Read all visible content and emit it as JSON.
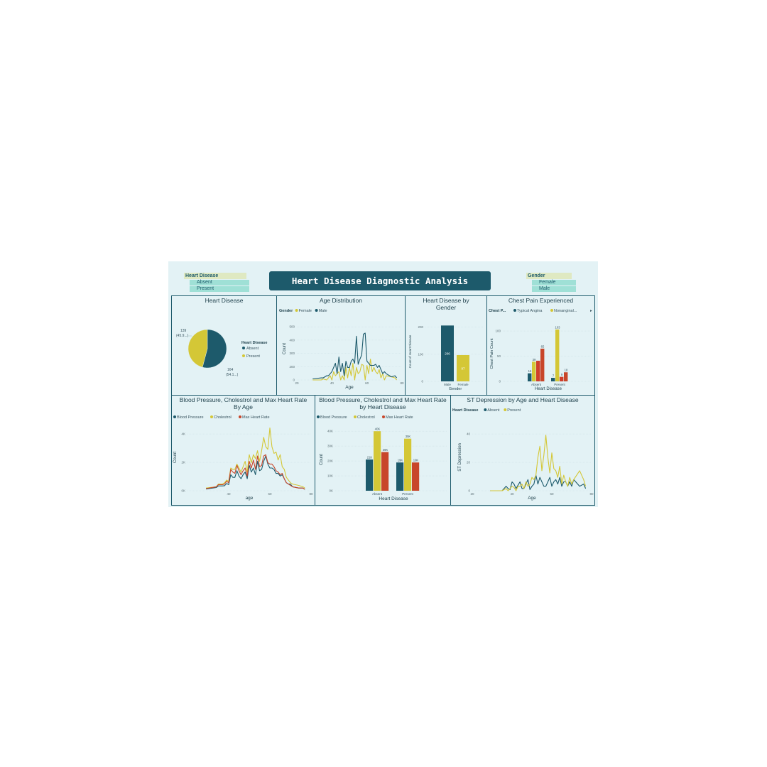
{
  "dashboard": {
    "title": "Heart Disease Diagnostic Analysis",
    "slicers": {
      "heart_disease": {
        "header": "Heart Disease",
        "options": [
          "Absent",
          "Present"
        ]
      },
      "gender": {
        "header": "Gender",
        "options": [
          "Female",
          "Male"
        ]
      }
    }
  },
  "colors": {
    "teal": "#1d5a6b",
    "yellow": "#d4c736",
    "red": "#c8462a",
    "background": "#e3f2f5"
  },
  "panels": {
    "pie": {
      "title": "Heart Disease"
    },
    "age": {
      "title": "Age Distribution"
    },
    "gender": {
      "title": "Heart Disease by Gender"
    },
    "chest": {
      "title": "Chest Pain Experienced"
    },
    "bp_age": {
      "title": "Blood Pressure, Cholestrol and Max Heart Rate By Age"
    },
    "bp_hd": {
      "title": "Blood Pressure, Cholestrol and Max Heart Rate by Heart Disease"
    },
    "st": {
      "title": "ST Depression by Age and Heart Disease"
    }
  },
  "chart_data": [
    {
      "id": "pie",
      "type": "pie",
      "title": "Heart Disease",
      "legend_title": "Heart Disease",
      "slices": [
        {
          "label": "Absent",
          "value": 164,
          "display": "164",
          "pct": "(54.1...)"
        },
        {
          "label": "Present",
          "value": 139,
          "display": "139",
          "pct": "(45.9...)"
        }
      ]
    },
    {
      "id": "age",
      "type": "line",
      "title": "Age Distribution",
      "xlabel": "Age",
      "ylabel": "Count",
      "legend_title": "Gender",
      "xlim": [
        20,
        80
      ],
      "ylim": [
        0,
        600
      ],
      "x_ticks": [
        "20",
        "40",
        "60",
        "80"
      ],
      "y_ticks": [
        "0",
        "200",
        "300",
        "400",
        "500"
      ],
      "x": [
        29,
        34,
        35,
        37,
        38,
        39,
        40,
        41,
        42,
        43,
        44,
        45,
        46,
        47,
        48,
        49,
        50,
        51,
        52,
        53,
        54,
        55,
        56,
        57,
        58,
        59,
        60,
        61,
        62,
        63,
        64,
        65,
        66,
        67,
        68,
        69,
        70,
        71,
        74,
        76,
        77
      ],
      "series": [
        {
          "name": "Female",
          "values": [
            0,
            0,
            10,
            0,
            20,
            40,
            0,
            80,
            40,
            60,
            80,
            0,
            40,
            0,
            120,
            20,
            120,
            40,
            160,
            0,
            120,
            60,
            80,
            150,
            140,
            0,
            140,
            60,
            200,
            80,
            120,
            80,
            60,
            100,
            20,
            60,
            0,
            40,
            30,
            20,
            0
          ]
        },
        {
          "name": "Male",
          "values": [
            10,
            20,
            20,
            40,
            40,
            60,
            80,
            120,
            160,
            60,
            220,
            80,
            160,
            40,
            180,
            120,
            120,
            180,
            200,
            160,
            420,
            150,
            200,
            240,
            440,
            450,
            180,
            160,
            140,
            140,
            140,
            150,
            120,
            140,
            100,
            60,
            80,
            60,
            30,
            40,
            20
          ]
        }
      ]
    },
    {
      "id": "gender",
      "type": "bar",
      "title": "Heart Disease by Gender",
      "xlabel": "Gender",
      "ylabel": "Count of Heart Disease",
      "categories": [
        "Male",
        "Female"
      ],
      "values": [
        206,
        97
      ],
      "ylim": [
        0,
        220
      ],
      "y_ticks": [
        "0",
        "100",
        "200"
      ]
    },
    {
      "id": "chest",
      "type": "bar",
      "title": "Chest Pain Experienced",
      "xlabel": "Heart Disease",
      "ylabel": "Chest Pain Count",
      "legend_title": "Chest P...",
      "categories": [
        "Absent",
        "Present"
      ],
      "ylim": [
        0,
        110
      ],
      "y_ticks": [
        "0",
        "50",
        "100"
      ],
      "series": [
        {
          "name": "Typical Angina",
          "values": [
            16,
            7
          ]
        },
        {
          "name": "Nonanginal...",
          "values": [
            39,
            103
          ]
        },
        {
          "name": "",
          "values": [
            41,
            9
          ]
        },
        {
          "name": "",
          "values": [
            65,
            18
          ]
        }
      ],
      "labels": [
        [
          "16",
          "39",
          "",
          "65"
        ],
        [
          "7",
          "103",
          "9",
          "18"
        ]
      ]
    },
    {
      "id": "bp_age",
      "type": "line",
      "title": "Blood Pressure, Cholestrol and Max Heart Rate By Age",
      "xlabel": "age",
      "ylabel": "Count",
      "xlim": [
        20,
        80
      ],
      "ylim": [
        0,
        5000
      ],
      "x_ticks": [
        "40",
        "60",
        "80"
      ],
      "y_ticks": [
        "0K",
        "2K",
        "4K"
      ],
      "x": [
        29,
        34,
        35,
        37,
        38,
        39,
        40,
        41,
        42,
        43,
        44,
        45,
        46,
        47,
        48,
        49,
        50,
        51,
        52,
        53,
        54,
        55,
        56,
        57,
        58,
        59,
        60,
        61,
        62,
        63,
        64,
        65,
        66,
        67,
        68,
        69,
        70,
        71,
        74,
        76,
        77
      ],
      "series": [
        {
          "name": "Blood Pressure",
          "values": [
            130,
            240,
            360,
            360,
            380,
            540,
            460,
            1200,
            1000,
            1000,
            1500,
            1100,
            900,
            1200,
            1400,
            900,
            1900,
            1400,
            1700,
            1200,
            2200,
            1500,
            1600,
            2200,
            2600,
            2000,
            1700,
            1700,
            1600,
            1300,
            1300,
            1100,
            1200,
            900,
            600,
            500,
            500,
            300,
            200,
            200,
            100
          ]
        },
        {
          "name": "Cholestrol",
          "values": [
            200,
            300,
            500,
            500,
            600,
            800,
            700,
            1700,
            1600,
            1600,
            2000,
            1700,
            1400,
            1800,
            2200,
            1400,
            2700,
            2100,
            2700,
            2400,
            3000,
            2200,
            3000,
            4000,
            3300,
            3100,
            4700,
            3300,
            2800,
            2900,
            2300,
            2700,
            1800,
            1600,
            1000,
            800,
            600,
            500,
            400,
            300,
            200
          ]
        },
        {
          "name": "Max Heart Rate",
          "values": [
            160,
            300,
            450,
            450,
            500,
            700,
            600,
            1600,
            1400,
            1300,
            1900,
            1500,
            1200,
            1500,
            1700,
            1100,
            2200,
            1700,
            2300,
            1600,
            2600,
            1800,
            1900,
            2600,
            2700,
            2100,
            2000,
            2000,
            1800,
            1500,
            1400,
            1200,
            1300,
            900,
            600,
            500,
            400,
            300,
            200,
            200,
            100
          ]
        }
      ]
    },
    {
      "id": "bp_hd",
      "type": "bar",
      "title": "Blood Pressure, Cholestrol and Max Heart Rate by Heart Disease",
      "xlabel": "Heart Disease",
      "ylabel": "Count",
      "categories": [
        "Absent",
        "Present"
      ],
      "ylim": [
        0,
        42000
      ],
      "y_ticks": [
        "0K",
        "10K",
        "20K",
        "30K",
        "40K"
      ],
      "series": [
        {
          "name": "Blood Pressure",
          "values": [
            21000,
            19000
          ]
        },
        {
          "name": "Cholestrol",
          "values": [
            40000,
            35000
          ]
        },
        {
          "name": "Max Heart Rate",
          "values": [
            26000,
            19000
          ]
        }
      ],
      "labels": [
        [
          "21K",
          "40K",
          "26K"
        ],
        [
          "19K",
          "35K",
          "19K"
        ]
      ]
    },
    {
      "id": "st",
      "type": "line",
      "title": "ST Depression by Age and Heart Disease",
      "xlabel": "Age",
      "ylabel": "ST Depression",
      "legend_title": "Heart Disease",
      "xlim": [
        20,
        80
      ],
      "ylim": [
        0,
        60
      ],
      "x_ticks": [
        "20",
        "40",
        "60",
        "80"
      ],
      "y_ticks": [
        "0",
        "20",
        "40"
      ],
      "x": [
        29,
        34,
        35,
        37,
        38,
        39,
        40,
        41,
        42,
        43,
        44,
        45,
        46,
        47,
        48,
        49,
        50,
        51,
        52,
        53,
        54,
        55,
        56,
        57,
        58,
        59,
        60,
        61,
        62,
        63,
        64,
        65,
        66,
        67,
        68,
        69,
        70,
        71,
        74,
        76,
        77
      ],
      "series": [
        {
          "name": "Absent",
          "values": [
            0,
            0,
            0,
            4,
            2,
            1,
            8,
            6,
            2,
            5,
            8,
            2,
            2,
            6,
            10,
            1,
            4,
            6,
            14,
            6,
            12,
            8,
            4,
            4,
            8,
            12,
            4,
            8,
            10,
            6,
            12,
            4,
            8,
            8,
            4,
            8,
            4,
            10,
            4,
            6,
            2
          ]
        },
        {
          "name": "Present",
          "values": [
            0,
            0,
            0,
            2,
            0,
            2,
            4,
            3,
            0,
            4,
            4,
            6,
            2,
            8,
            4,
            6,
            12,
            10,
            14,
            30,
            40,
            18,
            32,
            50,
            30,
            16,
            34,
            20,
            18,
            12,
            22,
            6,
            14,
            8,
            4,
            12,
            6,
            10,
            18,
            10,
            4
          ]
        }
      ]
    }
  ]
}
